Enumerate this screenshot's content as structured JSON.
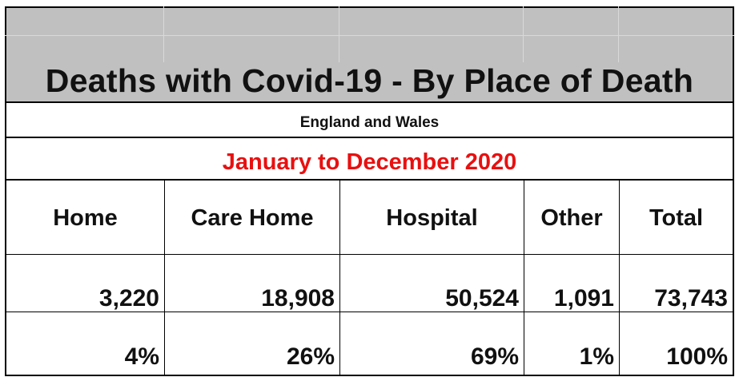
{
  "title": "Deaths with Covid-19 - By Place of Death",
  "subtitle": "England and Wales",
  "period": "January to December 2020",
  "colors": {
    "header_fill": "#c0c0c0",
    "period_text": "#e81010"
  },
  "table": {
    "headers": [
      "Home",
      "Care Home",
      "Hospital",
      "Other",
      "Total"
    ],
    "counts": [
      "3,220",
      "18,908",
      "50,524",
      "1,091",
      "73,743"
    ],
    "percentages": [
      "4%",
      "26%",
      "69%",
      "1%",
      "100%"
    ]
  }
}
